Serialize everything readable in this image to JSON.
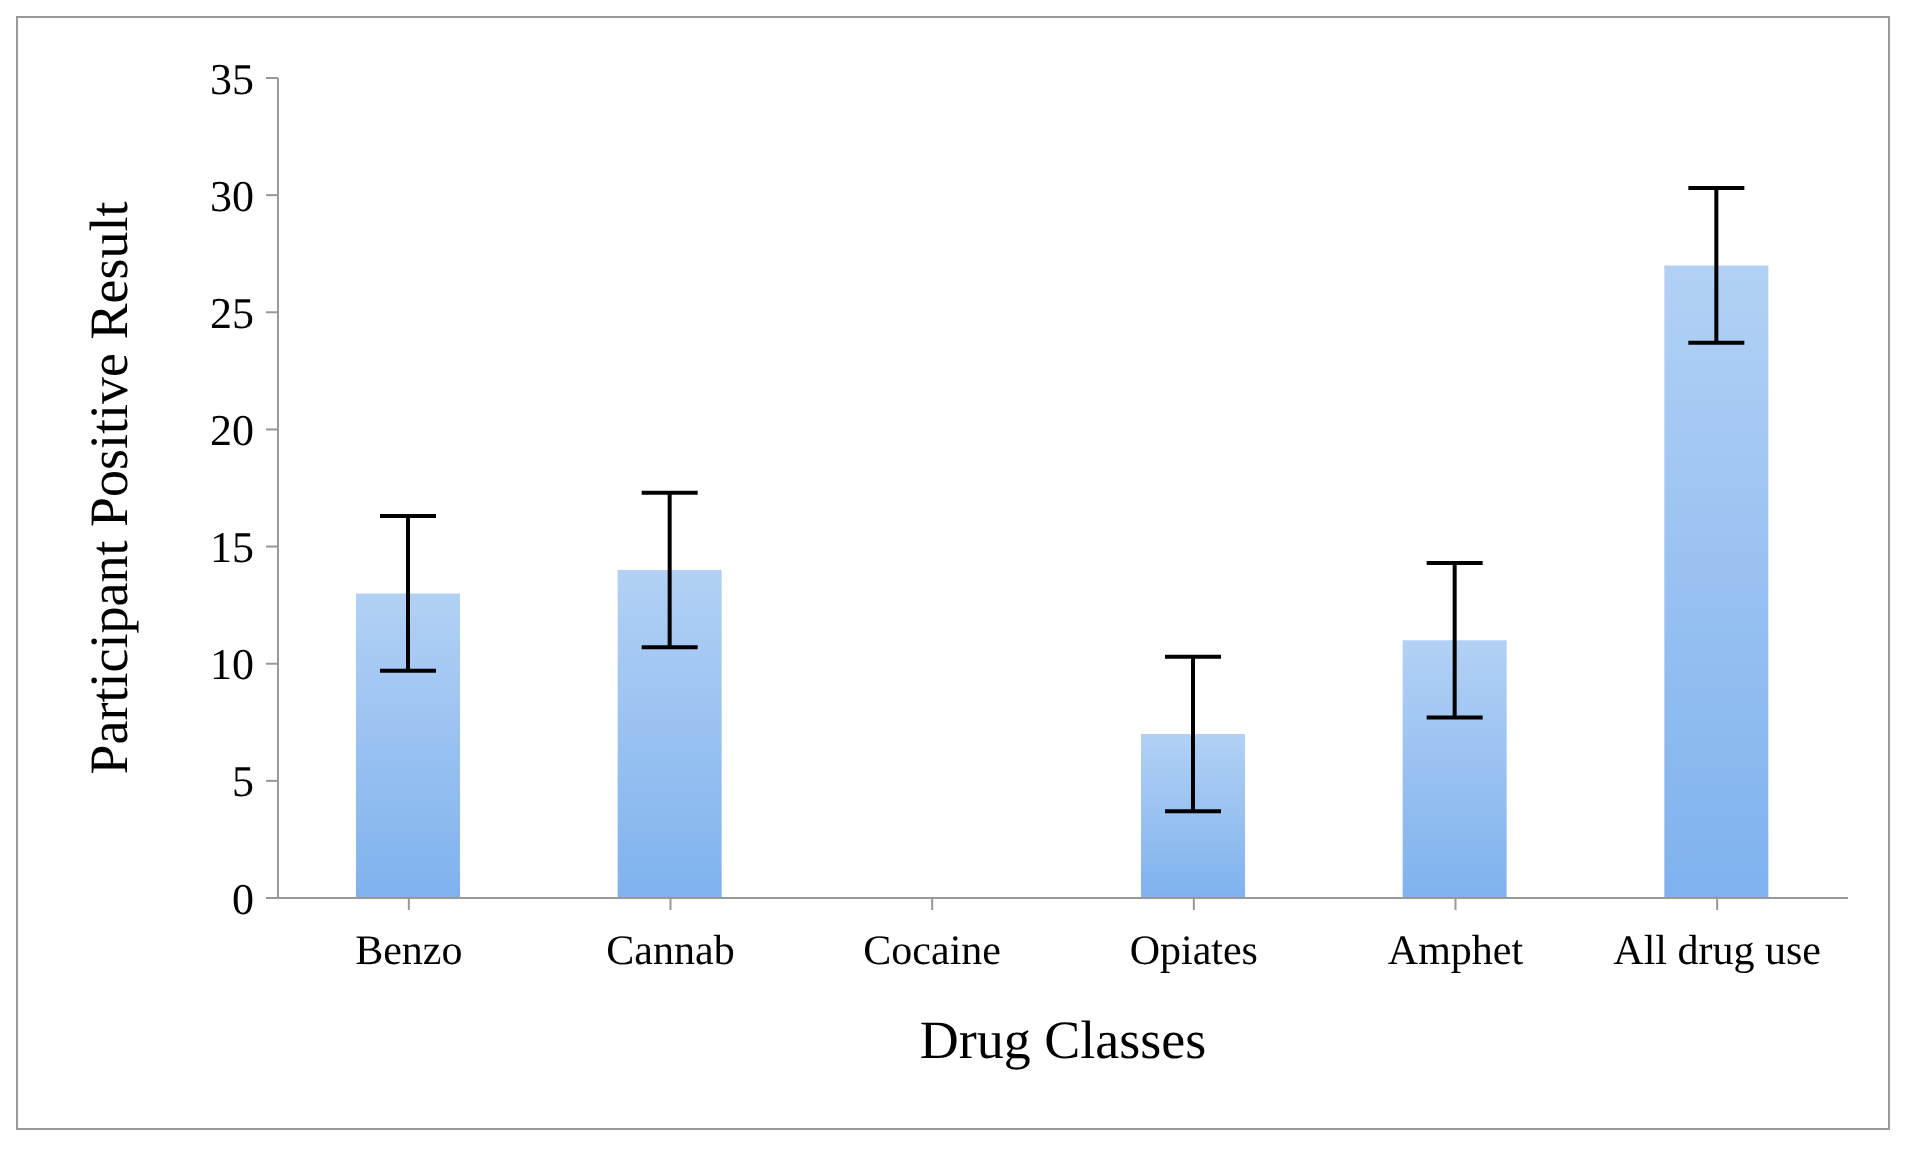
{
  "chart_data": {
    "type": "bar",
    "xlabel": "Drug Classes",
    "ylabel": "Participant Positive Result",
    "categories": [
      "Benzo",
      "Cannab",
      "Cocaine",
      "Opiates",
      "Amphet",
      "All drug use"
    ],
    "values": [
      13,
      14,
      0,
      7,
      11,
      27
    ],
    "errors": [
      3.3,
      3.3,
      null,
      3.3,
      3.3,
      3.3
    ],
    "color": "#7fb2ee",
    "ylim": [
      0,
      35
    ],
    "yticks": [
      0,
      5,
      10,
      15,
      20,
      25,
      30,
      35
    ]
  }
}
